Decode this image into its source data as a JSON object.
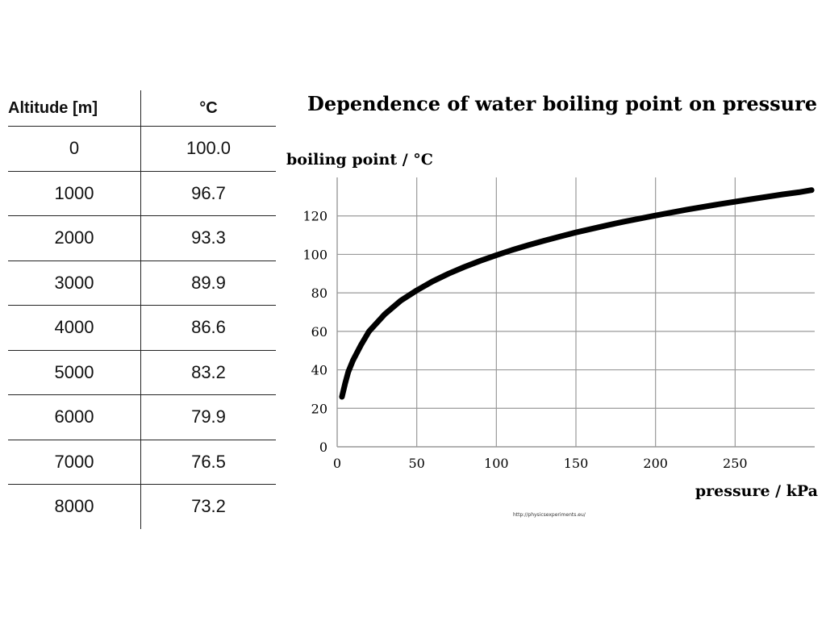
{
  "table": {
    "headers": [
      "Altitude [m]",
      "°C"
    ],
    "rows": [
      [
        "0",
        "100.0"
      ],
      [
        "1000",
        "96.7"
      ],
      [
        "2000",
        "93.3"
      ],
      [
        "3000",
        "89.9"
      ],
      [
        "4000",
        "86.6"
      ],
      [
        "5000",
        "83.2"
      ],
      [
        "6000",
        "79.9"
      ],
      [
        "7000",
        "76.5"
      ],
      [
        "8000",
        "73.2"
      ]
    ]
  },
  "chart_data": {
    "type": "line",
    "title": "Dependence of water boiling point on pressure",
    "xlabel": "pressure / kPa",
    "ylabel": "boiling point / °C",
    "xlim": [
      0,
      300
    ],
    "ylim": [
      0,
      140
    ],
    "xticks": [
      0,
      50,
      100,
      150,
      200,
      250
    ],
    "yticks": [
      0,
      20,
      40,
      60,
      80,
      100,
      120
    ],
    "grid": true,
    "series": [
      {
        "x": [
          3,
          5,
          7,
          10,
          15,
          20,
          30,
          40,
          50,
          60,
          70,
          80,
          90,
          100,
          110,
          120,
          130,
          140,
          150,
          160,
          170,
          180,
          190,
          200,
          220,
          240,
          260,
          280,
          290,
          298
        ],
        "y": [
          26,
          33,
          39,
          45,
          53,
          60,
          69,
          76,
          81.3,
          86,
          90,
          93.5,
          96.7,
          99.6,
          102.3,
          104.8,
          107.1,
          109.3,
          111.4,
          113.3,
          115.2,
          117,
          118.6,
          120.2,
          123.3,
          126.1,
          128.7,
          131.2,
          132.3,
          133.4
        ]
      }
    ]
  },
  "source": "http://physicsexperiments.eu/"
}
